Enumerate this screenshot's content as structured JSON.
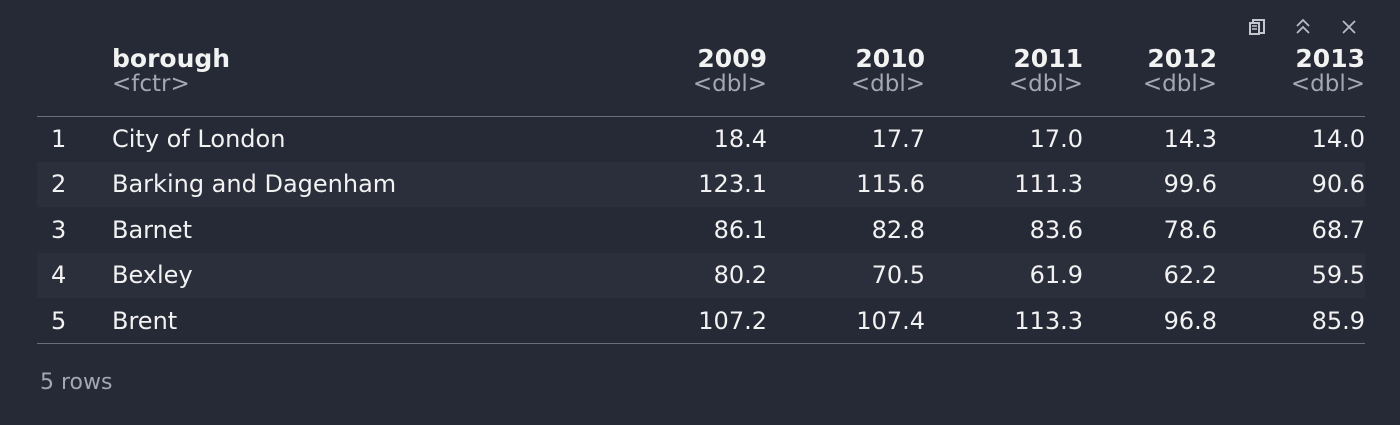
{
  "toolbar": {
    "icons": [
      "open-in-window-icon",
      "collapse-icon",
      "close-icon"
    ]
  },
  "table": {
    "columns": [
      {
        "name": "",
        "type": ""
      },
      {
        "name": "borough",
        "type": "<fctr>"
      },
      {
        "name": "2009",
        "type": "<dbl>"
      },
      {
        "name": "2010",
        "type": "<dbl>"
      },
      {
        "name": "2011",
        "type": "<dbl>"
      },
      {
        "name": "2012",
        "type": "<dbl>"
      },
      {
        "name": "2013",
        "type": "<dbl>"
      }
    ],
    "rows": [
      [
        "1",
        "City of London",
        "18.4",
        "17.7",
        "17.0",
        "14.3",
        "14.0"
      ],
      [
        "2",
        "Barking and Dagenham",
        "123.1",
        "115.6",
        "111.3",
        "99.6",
        "90.6"
      ],
      [
        "3",
        "Barnet",
        "86.1",
        "82.8",
        "83.6",
        "78.6",
        "68.7"
      ],
      [
        "4",
        "Bexley",
        "80.2",
        "70.5",
        "61.9",
        "62.2",
        "59.5"
      ],
      [
        "5",
        "Brent",
        "107.2",
        "107.4",
        "113.3",
        "96.8",
        "85.9"
      ]
    ]
  },
  "footer": {
    "row_count": "5 rows"
  },
  "colors": {
    "background": "#262936",
    "stripe": "#2b2e3b",
    "text": "#f2f2f2",
    "muted": "#a4a7b1"
  }
}
